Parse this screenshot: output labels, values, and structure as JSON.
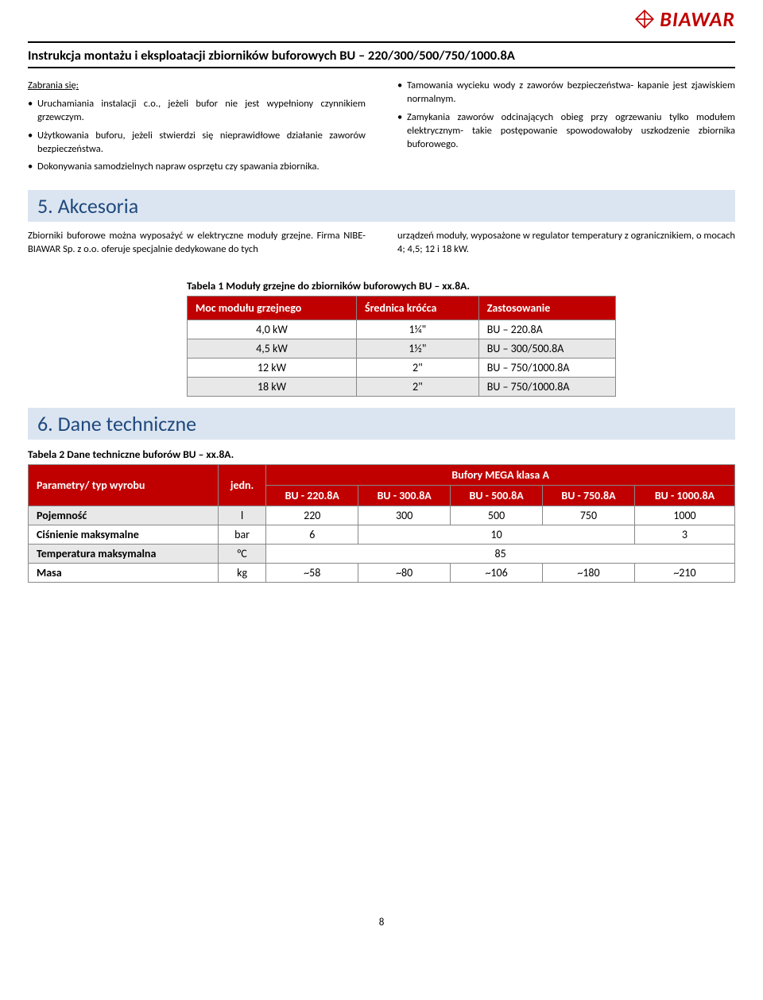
{
  "brand": "BIAWAR",
  "doc_title": "Instrukcja montażu i eksploatacji zbiorników buforowych BU – 220/300/500/750/1000.8A",
  "left_col": {
    "heading": "Zabrania się:",
    "items": [
      "Uruchamiania instalacji c.o., jeżeli bufor nie jest wypełniony czynnikiem grzewczym.",
      "Użytkowania buforu, jeżeli stwierdzi się nieprawidłowe działanie zaworów bezpieczeństwa.",
      "Dokonywania samodzielnych napraw osprzętu czy spawania zbiornika."
    ]
  },
  "right_col": {
    "items": [
      "Tamowania wycieku wody z zaworów bezpieczeństwa- kapanie jest zjawiskiem normalnym.",
      "Zamykania zaworów odcinających obieg przy ogrzewaniu tylko modułem elektrycznym- takie postępowanie spowodowałoby uszkodzenie zbiornika buforowego."
    ]
  },
  "section5": "5. Akcesoria",
  "para5_left": "Zbiorniki buforowe można wyposażyć w elektryczne moduły grzejne. Firma NIBE-BIAWAR Sp. z o.o. oferuje specjalnie dedykowane do tych",
  "para5_right": "urządzeń moduły, wyposażone w regulator temperatury z ogranicznikiem, o mocach 4; 4,5; 12 i 18 kW.",
  "table1": {
    "caption": "Tabela 1 Moduły grzejne do zbiorników buforowych BU – xx.8A.",
    "headers": [
      "Moc modułu grzejnego",
      "Średnica króćca",
      "Zastosowanie"
    ],
    "rows": [
      {
        "c1": "4,0 kW",
        "c2": "1¼\"",
        "c3": "BU – 220.8A",
        "alt": false
      },
      {
        "c1": "4,5 kW",
        "c2": "1½\"",
        "c3": "BU – 300/500.8A",
        "alt": true
      },
      {
        "c1": "12 kW",
        "c2": "2\"",
        "c3": "BU – 750/1000.8A",
        "alt": false
      },
      {
        "c1": "18 kW",
        "c2": "2\"",
        "c3": "BU – 750/1000.8A",
        "alt": true
      }
    ]
  },
  "section6": "6. Dane techniczne",
  "table2": {
    "caption": "Tabela 2 Dane techniczne buforów BU – xx.8A.",
    "h_param": "Parametry/ typ wyrobu",
    "h_unit": "jedn.",
    "h_group": "Bufory MEGA klasa A",
    "models": [
      "BU - 220.8A",
      "BU - 300.8A",
      "BU - 500.8A",
      "BU - 750.8A",
      "BU - 1000.8A"
    ],
    "rows": [
      {
        "label": "Pojemność",
        "unit": "l",
        "vals": [
          "220",
          "300",
          "500",
          "750",
          "1000"
        ],
        "alt": true
      },
      {
        "label": "Ciśnienie maksymalne",
        "unit": "bar",
        "spans": [
          {
            "text": "6",
            "span": 1
          },
          {
            "text": "10",
            "span": 3
          },
          {
            "text": "3",
            "span": 1
          }
        ],
        "alt": false
      },
      {
        "label": "Temperatura maksymalna",
        "unit": "°C",
        "spans": [
          {
            "text": "85",
            "span": 5
          }
        ],
        "alt": true
      },
      {
        "label": "Masa",
        "unit": "kg",
        "vals": [
          "~58",
          "~80",
          "~106",
          "~180",
          "~210"
        ],
        "alt": false
      }
    ]
  },
  "page_num": "8",
  "colors": {
    "accent_red": "#c00000",
    "section_bg": "#dbe5f1",
    "section_fg": "#1f497d",
    "row_alt": "#e8e8e8"
  }
}
